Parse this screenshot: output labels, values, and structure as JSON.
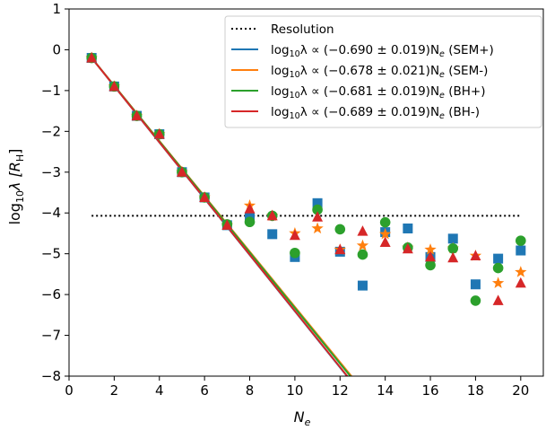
{
  "chart_data": {
    "type": "scatter",
    "xlabel_main": "N",
    "xlabel_sub": "e",
    "ylabel_main": "log",
    "ylabel_sub": "10",
    "ylabel_rest": "λ [R",
    "ylabel_unit_sub": "H",
    "ylabel_close": "]",
    "xlim": [
      0,
      21
    ],
    "ylim": [
      -8,
      1
    ],
    "xticks": [
      "0",
      "2",
      "4",
      "6",
      "8",
      "10",
      "12",
      "14",
      "16",
      "18",
      "20"
    ],
    "yticks": [
      "1",
      "0",
      "−1",
      "−2",
      "−3",
      "−4",
      "−5",
      "−6",
      "−7",
      "−8"
    ],
    "resolution": {
      "label": "Resolution",
      "y": -4.07,
      "x_range": [
        1,
        20
      ],
      "color": "#000000"
    },
    "legend_position": "upper right",
    "series": [
      {
        "name": "SEM+",
        "legend_prefix": "log",
        "legend_sub": "10",
        "legend_mid": "λ ∝ (−0.690 ± 0.019)N",
        "legend_nsub": "e",
        "legend_suffix": " (SEM+)",
        "color": "#1f77b4",
        "marker": "square",
        "slope": -0.69,
        "intercept": 0.49,
        "x": [
          1,
          2,
          3,
          4,
          5,
          6,
          7,
          8,
          9,
          10,
          11,
          12,
          13,
          14,
          15,
          16,
          17,
          18,
          19,
          20
        ],
        "y": [
          -0.2,
          -0.9,
          -1.62,
          -2.07,
          -3.0,
          -3.62,
          -4.3,
          -4.12,
          -4.52,
          -5.08,
          -3.76,
          -4.95,
          -5.78,
          -4.47,
          -4.38,
          -5.08,
          -4.63,
          -5.75,
          -5.12,
          -4.92
        ]
      },
      {
        "name": "SEM-",
        "legend_prefix": "log",
        "legend_sub": "10",
        "legend_mid": "λ ∝ (−0.678 ± 0.021)N",
        "legend_nsub": "e",
        "legend_suffix": " (SEM-)",
        "color": "#ff7f0e",
        "marker": "star",
        "slope": -0.678,
        "intercept": 0.478,
        "x": [
          1,
          2,
          3,
          4,
          5,
          6,
          7,
          8,
          9,
          10,
          11,
          12,
          13,
          14,
          15,
          16,
          17,
          18,
          19,
          20
        ],
        "y": [
          -0.2,
          -0.9,
          -1.62,
          -2.07,
          -3.0,
          -3.62,
          -4.3,
          -3.82,
          -4.07,
          -4.5,
          -4.38,
          -4.9,
          -4.8,
          -4.52,
          -4.85,
          -4.9,
          -4.87,
          -5.05,
          -5.72,
          -5.45
        ]
      },
      {
        "name": "BH+",
        "legend_prefix": "log",
        "legend_sub": "10",
        "legend_mid": "λ ∝ (−0.681 ± 0.019)N",
        "legend_nsub": "e",
        "legend_suffix": " (BH+)",
        "color": "#2ca02c",
        "marker": "circle",
        "slope": -0.681,
        "intercept": 0.481,
        "x": [
          1,
          2,
          3,
          4,
          5,
          6,
          7,
          8,
          9,
          10,
          11,
          12,
          13,
          14,
          15,
          16,
          17,
          18,
          19,
          20
        ],
        "y": [
          -0.2,
          -0.9,
          -1.62,
          -2.07,
          -3.0,
          -3.62,
          -4.28,
          -4.22,
          -4.07,
          -4.98,
          -3.92,
          -4.4,
          -5.02,
          -4.23,
          -4.85,
          -5.28,
          -4.87,
          -6.15,
          -5.35,
          -4.68
        ]
      },
      {
        "name": "BH-",
        "legend_prefix": "log",
        "legend_sub": "10",
        "legend_mid": "λ ∝ (−0.689 ± 0.019)N",
        "legend_nsub": "e",
        "legend_suffix": " (BH-)",
        "color": "#d62728",
        "marker": "triangle",
        "slope": -0.689,
        "intercept": 0.489,
        "x": [
          1,
          2,
          3,
          4,
          5,
          6,
          7,
          8,
          9,
          10,
          11,
          12,
          13,
          14,
          15,
          16,
          17,
          18,
          19,
          20
        ],
        "y": [
          -0.2,
          -0.9,
          -1.62,
          -2.07,
          -3.0,
          -3.62,
          -4.3,
          -3.9,
          -4.07,
          -4.55,
          -4.1,
          -4.9,
          -4.45,
          -4.72,
          -4.88,
          -5.08,
          -5.1,
          -5.05,
          -6.15,
          -5.72
        ]
      }
    ]
  }
}
